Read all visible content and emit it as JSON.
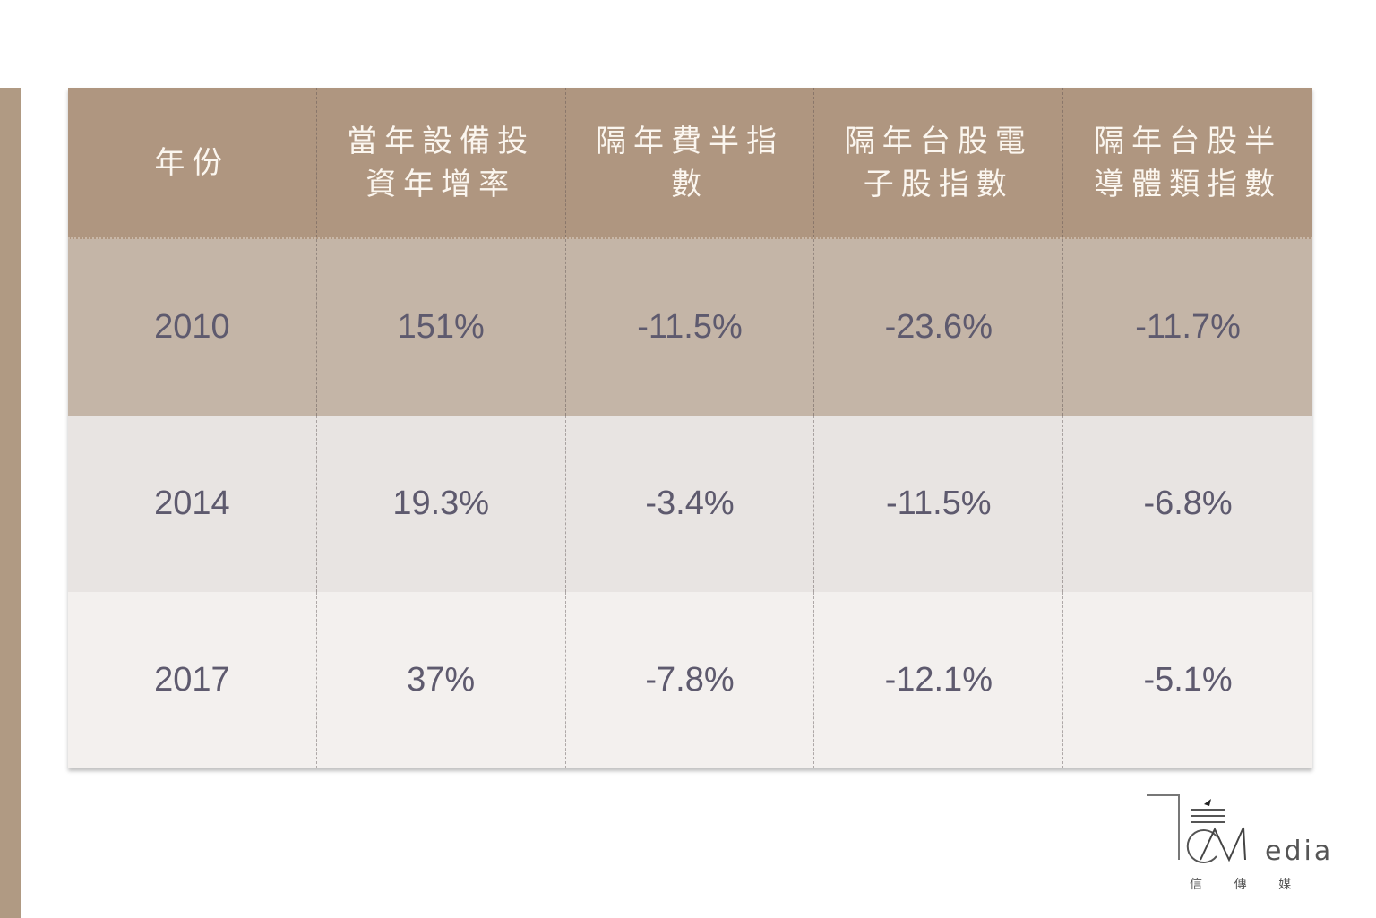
{
  "chart_data": {
    "type": "table",
    "columns": [
      "年份",
      "當年設備投\n資年增率",
      "隔年費半指\n數",
      "隔年台股電\n子股指數",
      "隔年台股半\n導體類指數"
    ],
    "rows": [
      [
        "2010",
        "151%",
        "-11.5%",
        "-23.6%",
        "-11.7%"
      ],
      [
        "2014",
        "19.3%",
        "-3.4%",
        "-11.5%",
        "-6.8%"
      ],
      [
        "2017",
        "37%",
        "-7.8%",
        "-12.1%",
        "-5.1%"
      ]
    ]
  },
  "logo": {
    "text": "Media",
    "subtitle": "信 傳 媒"
  },
  "colors": {
    "header": "#af9680",
    "row1": "#c4b5a7",
    "row2": "#e8e4e2",
    "row3": "#f3f0ee",
    "accent_bar": "#b09a83"
  }
}
